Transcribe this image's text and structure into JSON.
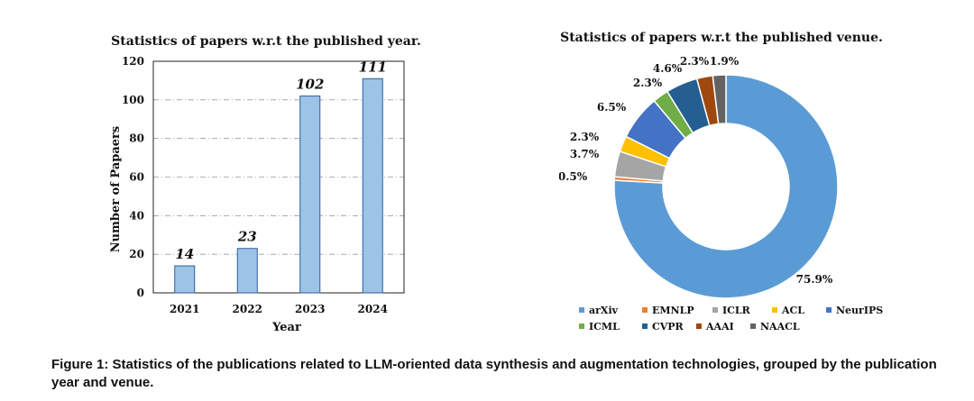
{
  "chart_data": [
    {
      "type": "bar",
      "title": "Statistics of papers w.r.t the published year.",
      "xlabel": "Year",
      "ylabel": "Number of Papaers",
      "categories": [
        "2021",
        "2022",
        "2023",
        "2024"
      ],
      "values": [
        14,
        23,
        102,
        111
      ],
      "data_labels": [
        "14",
        "23",
        "102",
        "111"
      ],
      "ylim": [
        0,
        120
      ],
      "yticks": [
        0,
        20,
        40,
        60,
        80,
        100,
        120
      ],
      "ytick_labels": [
        "0",
        "20",
        "40",
        "60",
        "80",
        "100",
        "120"
      ],
      "grid": "horizontal dash-dot",
      "bar_color": "#9dc3e6",
      "bar_edge_color": "#2e5f9e"
    },
    {
      "type": "pie",
      "style": "donut",
      "title": "Statistics of papers w.r.t the published venue.",
      "slices": [
        {
          "name": "arXiv",
          "value": 75.9,
          "label": "75.9%",
          "color": "#5b9bd5"
        },
        {
          "name": "EMNLP",
          "value": 0.5,
          "label": "0.5%",
          "color": "#ed7d31"
        },
        {
          "name": "ICLR",
          "value": 3.7,
          "label": "3.7%",
          "color": "#a5a5a5"
        },
        {
          "name": "ACL",
          "value": 2.3,
          "label": "2.3%",
          "color": "#ffc000"
        },
        {
          "name": "NeurIPS",
          "value": 6.5,
          "label": "6.5%",
          "color": "#4472c4"
        },
        {
          "name": "ICML",
          "value": 2.3,
          "label": "2.3%",
          "color": "#70ad47"
        },
        {
          "name": "CVPR",
          "value": 4.6,
          "label": "4.6%",
          "color": "#255e91"
        },
        {
          "name": "AAAI",
          "value": 2.3,
          "label": "2.3%",
          "color": "#9e480e"
        },
        {
          "name": "NAACL",
          "value": 1.9,
          "label": "1.9%",
          "color": "#636363"
        }
      ],
      "legend_position": "bottom"
    }
  ],
  "caption": "Figure 1: Statistics of the publications related to LLM-oriented data synthesis and augmentation technologies, grouped by the publication year and venue."
}
